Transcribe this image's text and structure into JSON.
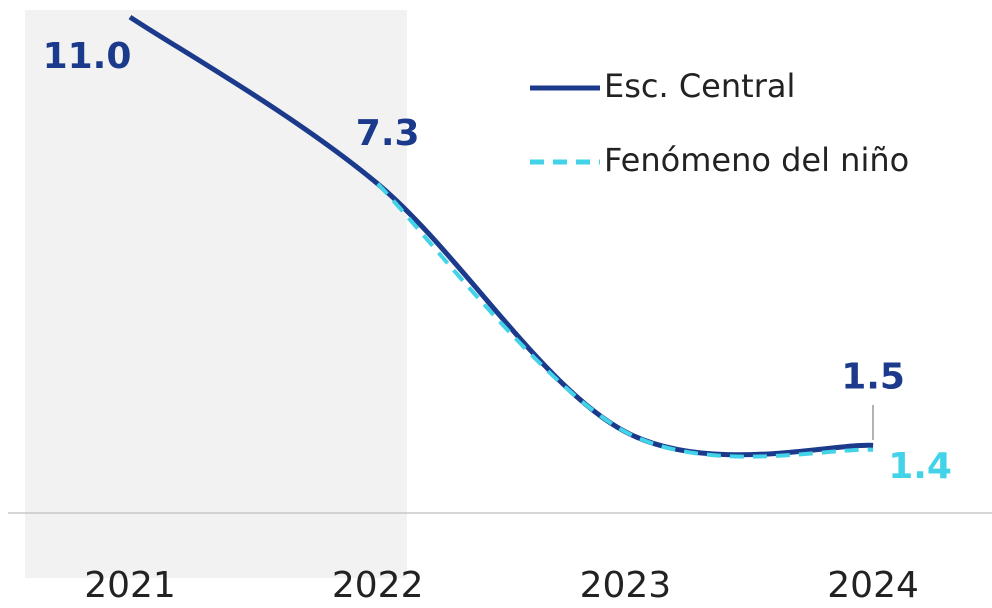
{
  "chart_data": {
    "type": "line",
    "categories": [
      "2021",
      "2022",
      "2023",
      "2024"
    ],
    "series": [
      {
        "name": "Esc. Central",
        "color": "#1b3a8c",
        "dash": false,
        "values": [
          11,
          7.3,
          1.8,
          1.5
        ],
        "value_labels": [
          "11.0",
          "7.3",
          null,
          "1.5"
        ]
      },
      {
        "name": "Fenómeno del niño",
        "color": "#43d3e8",
        "dash": true,
        "values": [
          null,
          7.3,
          1.8,
          1.4
        ],
        "value_labels": [
          null,
          null,
          null,
          "1.4"
        ]
      }
    ],
    "ylim": [
      0,
      11.2
    ],
    "smooth": true
  }
}
